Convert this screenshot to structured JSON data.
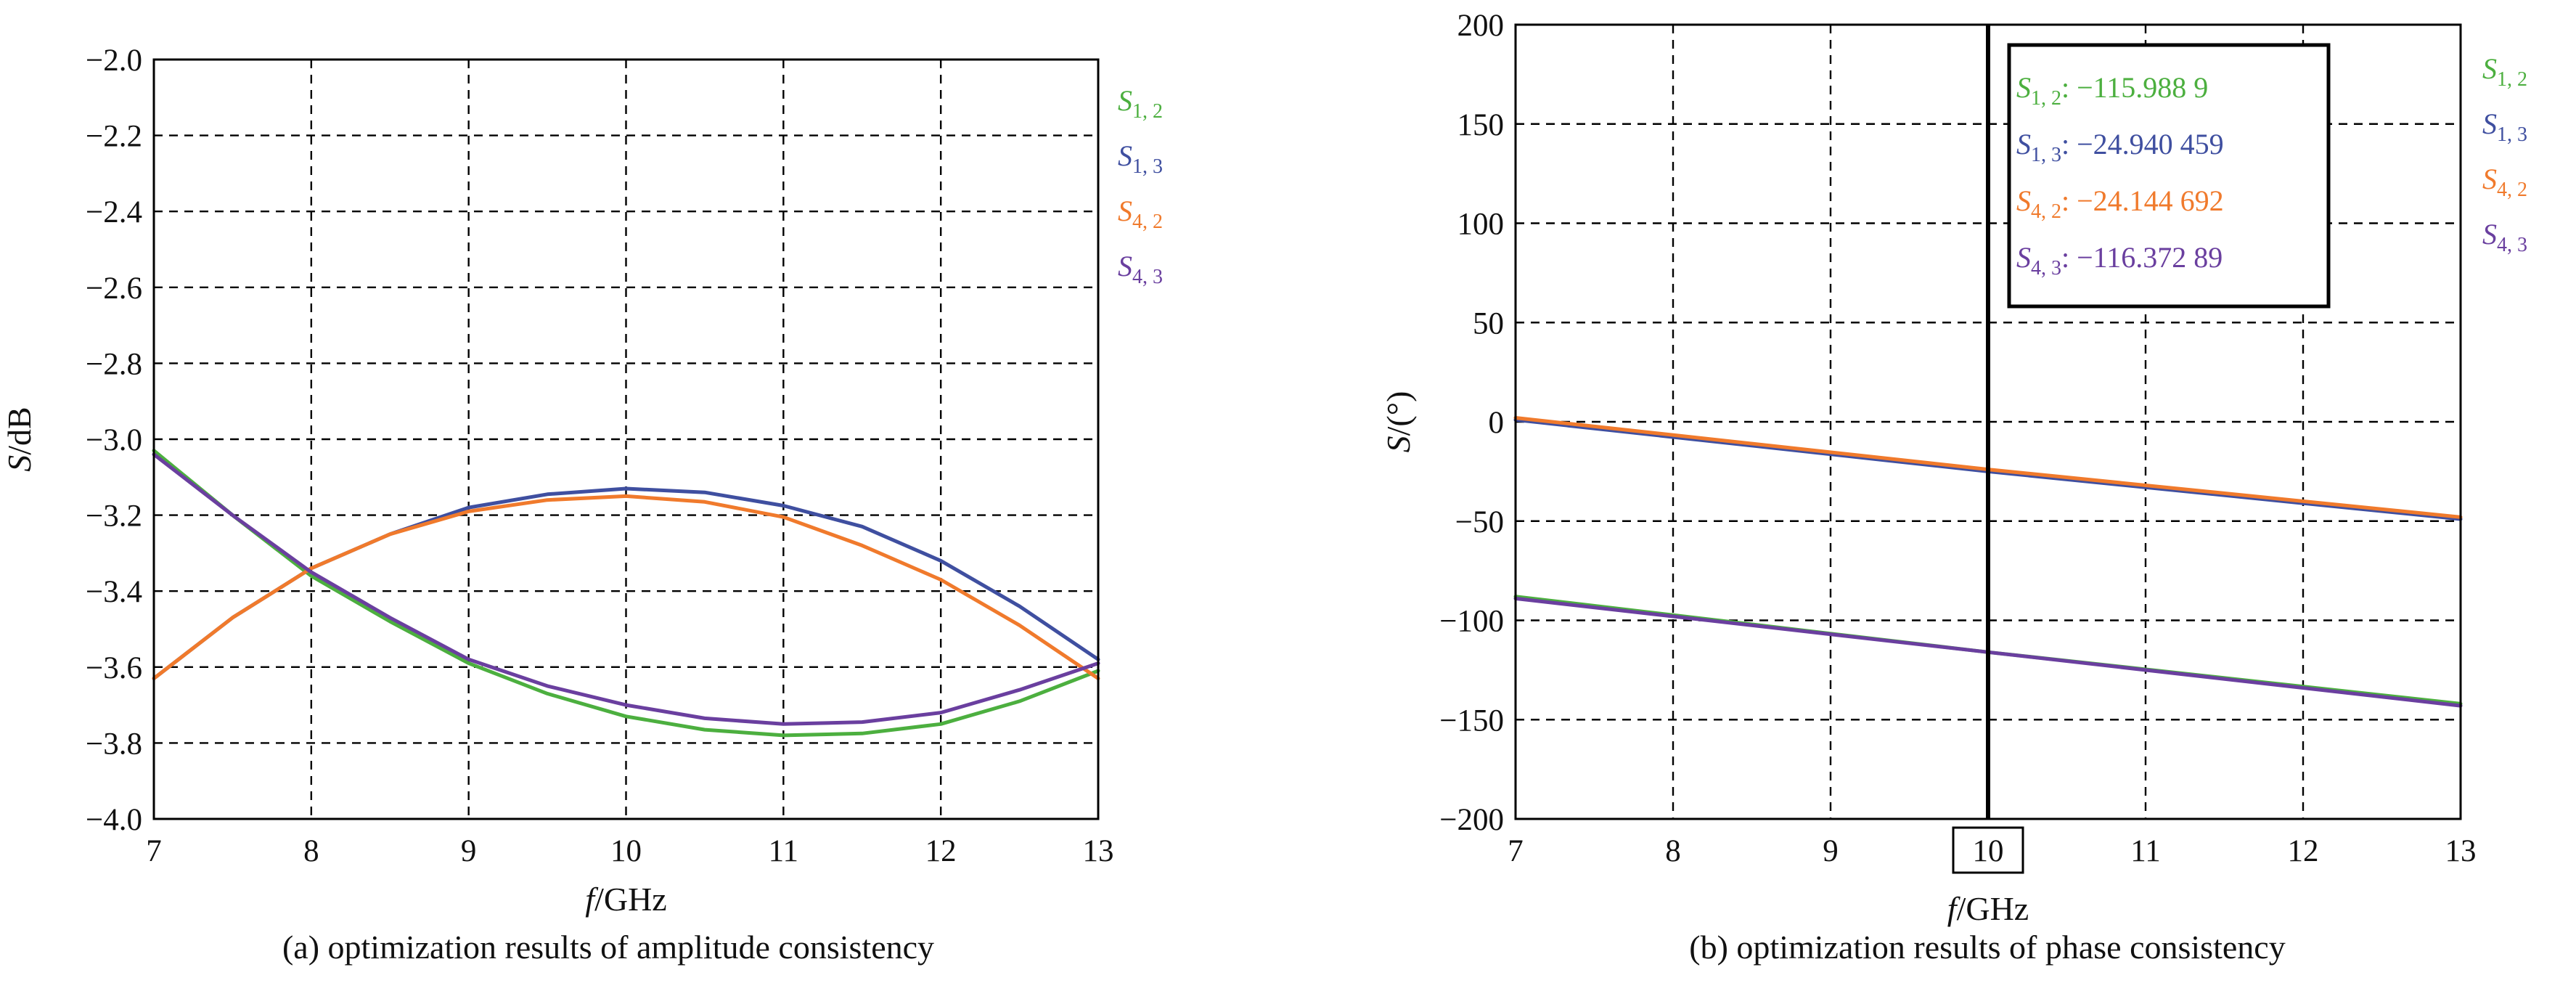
{
  "colors": {
    "S12": "#4caf3f",
    "S13": "#3f4fa0",
    "S42": "#f07a2c",
    "S43": "#6a3f9f",
    "axis": "#000000"
  },
  "chart_data": [
    {
      "type": "line",
      "caption": "(a) optimization results of amplitude consistency",
      "xlabel_var": "f",
      "xlabel_unit": "/GHz",
      "ylabel_var": "S",
      "ylabel_unit": "/dB",
      "xlim": [
        7,
        13
      ],
      "ylim": [
        -4.0,
        -2.0
      ],
      "xticks": [
        7,
        8,
        9,
        10,
        11,
        12,
        13
      ],
      "yticks": [
        -2.0,
        -2.2,
        -2.4,
        -2.6,
        -2.8,
        -3.0,
        -3.2,
        -3.4,
        -3.6,
        -3.8,
        -4.0
      ],
      "ytick_labels": [
        "−2.0",
        "−2.2",
        "−2.4",
        "−2.6",
        "−2.8",
        "−3.0",
        "−3.2",
        "−3.4",
        "−3.6",
        "−3.8",
        "−4.0"
      ],
      "grid": true,
      "legend_position": "right",
      "series": [
        {
          "key": "S12",
          "name_base": "S",
          "name_sub": "1, 2",
          "x": [
            7,
            7.5,
            8,
            8.5,
            9,
            9.5,
            10,
            10.5,
            11,
            11.5,
            12,
            12.5,
            13
          ],
          "y": [
            -3.03,
            -3.2,
            -3.36,
            -3.48,
            -3.59,
            -3.67,
            -3.73,
            -3.765,
            -3.78,
            -3.775,
            -3.75,
            -3.69,
            -3.61
          ]
        },
        {
          "key": "S13",
          "name_base": "S",
          "name_sub": "1, 3",
          "x": [
            7,
            7.5,
            8,
            8.5,
            9,
            9.5,
            10,
            10.5,
            11,
            11.5,
            12,
            12.5,
            13
          ],
          "y": [
            -3.63,
            -3.47,
            -3.34,
            -3.25,
            -3.18,
            -3.145,
            -3.13,
            -3.14,
            -3.175,
            -3.23,
            -3.32,
            -3.44,
            -3.58
          ]
        },
        {
          "key": "S42",
          "name_base": "S",
          "name_sub": "4, 2",
          "x": [
            7,
            7.5,
            8,
            8.5,
            9,
            9.5,
            10,
            10.5,
            11,
            11.5,
            12,
            12.5,
            13
          ],
          "y": [
            -3.63,
            -3.47,
            -3.34,
            -3.25,
            -3.19,
            -3.16,
            -3.15,
            -3.165,
            -3.205,
            -3.28,
            -3.37,
            -3.49,
            -3.63
          ]
        },
        {
          "key": "S43",
          "name_base": "S",
          "name_sub": "4, 3",
          "x": [
            7,
            7.5,
            8,
            8.5,
            9,
            9.5,
            10,
            10.5,
            11,
            11.5,
            12,
            12.5,
            13
          ],
          "y": [
            -3.04,
            -3.2,
            -3.35,
            -3.47,
            -3.58,
            -3.65,
            -3.7,
            -3.735,
            -3.75,
            -3.745,
            -3.72,
            -3.66,
            -3.59
          ]
        }
      ]
    },
    {
      "type": "line",
      "caption": "(b) optimization results of phase consistency",
      "xlabel_var": "f",
      "xlabel_unit": "/GHz",
      "ylabel_var": "S",
      "ylabel_unit": "/(°)",
      "xlim": [
        7,
        13
      ],
      "ylim": [
        -200,
        200
      ],
      "xticks": [
        7,
        8,
        9,
        10,
        11,
        12,
        13
      ],
      "yticks": [
        200,
        150,
        100,
        50,
        0,
        -50,
        -100,
        -150,
        -200
      ],
      "ytick_labels": [
        "200",
        "150",
        "100",
        "50",
        "0",
        "−50",
        "−100",
        "−150",
        "−200"
      ],
      "grid": true,
      "legend_position": "right",
      "marker_x": 10,
      "marker_x_label": "10",
      "readout": [
        {
          "key": "S12",
          "name_sub": "1, 2",
          "value": ": −115.988 9"
        },
        {
          "key": "S13",
          "name_sub": "1, 3",
          "value": ": −24.940 459"
        },
        {
          "key": "S42",
          "name_sub": "4, 2",
          "value": ": −24.144 692"
        },
        {
          "key": "S43",
          "name_sub": "4, 3",
          "value": ": −116.372 89"
        }
      ],
      "series": [
        {
          "key": "S12",
          "name_base": "S",
          "name_sub": "1, 2",
          "x": [
            7,
            10,
            13
          ],
          "y": [
            -88,
            -116,
            -142
          ]
        },
        {
          "key": "S13",
          "name_base": "S",
          "name_sub": "1, 3",
          "x": [
            7,
            10,
            13
          ],
          "y": [
            1,
            -25,
            -49
          ]
        },
        {
          "key": "S42",
          "name_base": "S",
          "name_sub": "4, 2",
          "x": [
            7,
            10,
            13
          ],
          "y": [
            2,
            -24,
            -48
          ]
        },
        {
          "key": "S43",
          "name_base": "S",
          "name_sub": "4, 3",
          "x": [
            7,
            10,
            13
          ],
          "y": [
            -89,
            -116,
            -143
          ]
        }
      ]
    }
  ]
}
